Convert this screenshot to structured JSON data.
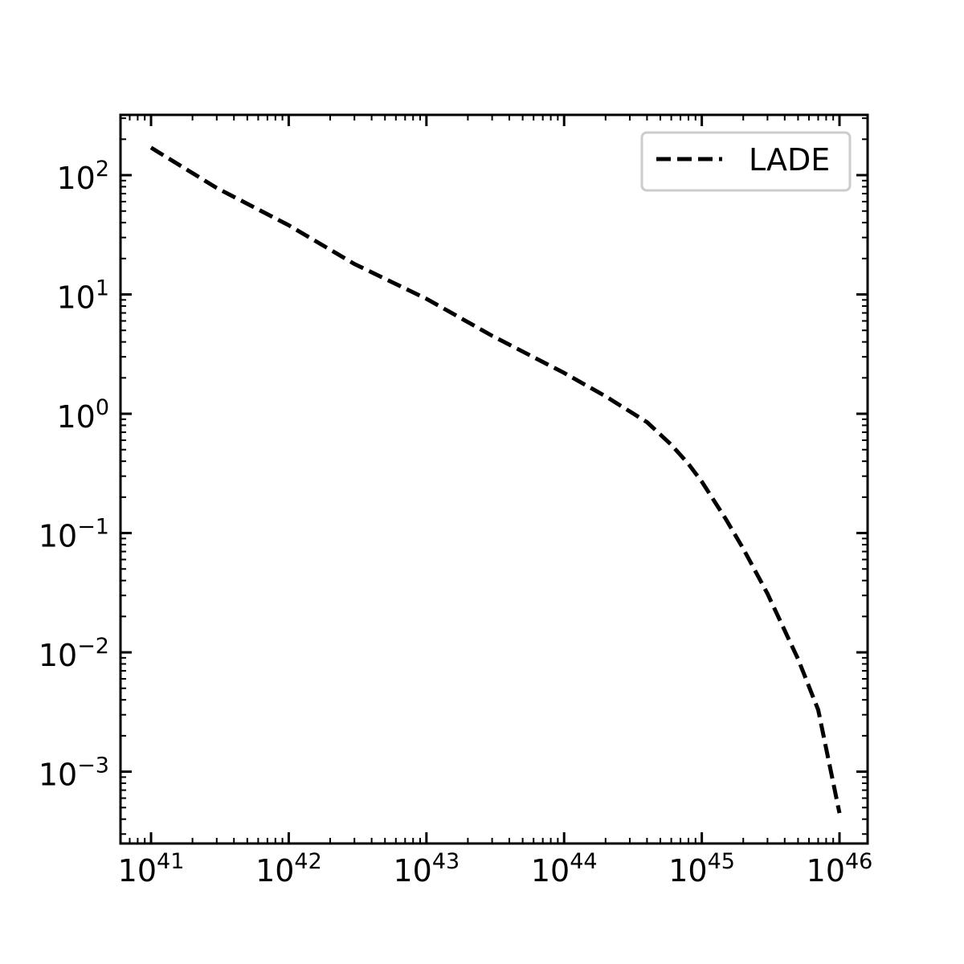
{
  "chart_data": {
    "type": "line",
    "scale": {
      "x": "log",
      "y": "log"
    },
    "xlim": [
      6e+40,
      1.6e+46
    ],
    "ylim": [
      0.00025,
      320
    ],
    "x_ticks": [
      {
        "value": 1e+41,
        "base": "10",
        "exp": "41"
      },
      {
        "value": 1e+42,
        "base": "10",
        "exp": "42"
      },
      {
        "value": 1e+43,
        "base": "10",
        "exp": "43"
      },
      {
        "value": 1e+44,
        "base": "10",
        "exp": "44"
      },
      {
        "value": 1e+45,
        "base": "10",
        "exp": "45"
      },
      {
        "value": 1e+46,
        "base": "10",
        "exp": "46"
      }
    ],
    "y_ticks": [
      {
        "value": 100,
        "base": "10",
        "exp": "2"
      },
      {
        "value": 10,
        "base": "10",
        "exp": "1"
      },
      {
        "value": 1,
        "base": "10",
        "exp": "0"
      },
      {
        "value": 0.1,
        "base": "10",
        "exp": "−1"
      },
      {
        "value": 0.01,
        "base": "10",
        "exp": "−2"
      },
      {
        "value": 0.001,
        "base": "10",
        "exp": "−3"
      }
    ],
    "title": "",
    "xlabel": "",
    "ylabel": "",
    "grid": false,
    "legend": {
      "placement": "top-right",
      "entries": [
        "LADE"
      ]
    },
    "series": [
      {
        "name": "LADE",
        "style": "dashed",
        "color": "#000000",
        "x": [
          1e+41,
          3e+41,
          1e+42,
          3e+42,
          1e+43,
          3e+43,
          1e+44,
          2e+44,
          4e+44,
          6e+44,
          8e+44,
          1e+45,
          1.5e+45,
          2e+45,
          3e+45,
          5e+45,
          7e+45,
          1e+46
        ],
        "y": [
          170,
          78,
          38,
          18,
          9.2,
          4.5,
          2.2,
          1.4,
          0.85,
          0.55,
          0.38,
          0.27,
          0.13,
          0.074,
          0.031,
          0.0088,
          0.0033,
          0.00045
        ]
      }
    ]
  }
}
